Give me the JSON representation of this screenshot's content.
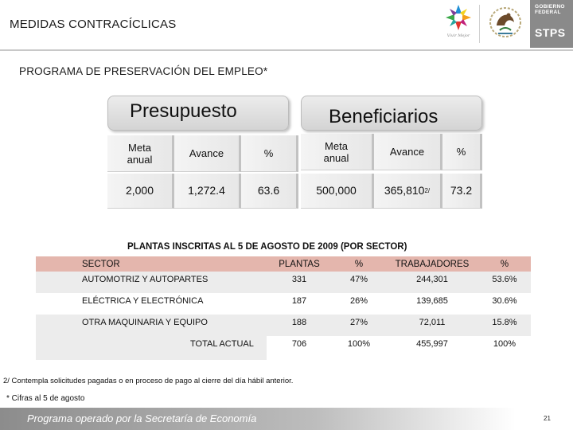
{
  "header": {
    "title": "MEDIDAS CONTRACÍCLICAS",
    "logo_vivir_text": "Vivir Mejor",
    "gobierno_line1": "GOBIERNO",
    "gobierno_line2": "FEDERAL",
    "stps": "STPS"
  },
  "section": {
    "title": "PROGRAMA DE PRESERVACIÓN DEL EMPLEO*"
  },
  "presupuesto": {
    "title": "Presupuesto",
    "headers": [
      "Meta anual",
      "Avance",
      "%"
    ],
    "values": [
      "2,000",
      "1,272.4",
      "63.6"
    ]
  },
  "beneficiarios": {
    "title": "Beneficiarios",
    "headers": [
      "Meta anual",
      "Avance",
      "%"
    ],
    "values": [
      "500,000",
      "365,810",
      "73.2"
    ],
    "avance_superscript": "2/"
  },
  "plantas": {
    "caption": "PLANTAS INSCRITAS AL 5 DE AGOSTO DE 2009 (POR SECTOR)",
    "columns": [
      "SECTOR",
      "PLANTAS",
      "%",
      "TRABAJADORES",
      "%"
    ],
    "rows": [
      [
        "AUTOMOTRIZ Y AUTOPARTES",
        "331",
        "47%",
        "244,301",
        "53.6%"
      ],
      [
        "ELÉCTRICA Y ELECTRÓNICA",
        "187",
        "26%",
        "139,685",
        "30.6%"
      ],
      [
        "OTRA MAQUINARIA Y EQUIPO",
        "188",
        "27%",
        "72,011",
        "15.8%"
      ]
    ],
    "total": [
      "TOTAL ACTUAL",
      "706",
      "100%",
      "455,997",
      "100%"
    ]
  },
  "notes": {
    "note1": "2/ Contempla solicitudes pagadas o en proceso de pago al cierre del día hábil anterior.",
    "note2": "* Cifras al 5 de agosto"
  },
  "footer": {
    "text": "Programa operado por la Secretaría de Economía",
    "page": "21"
  }
}
